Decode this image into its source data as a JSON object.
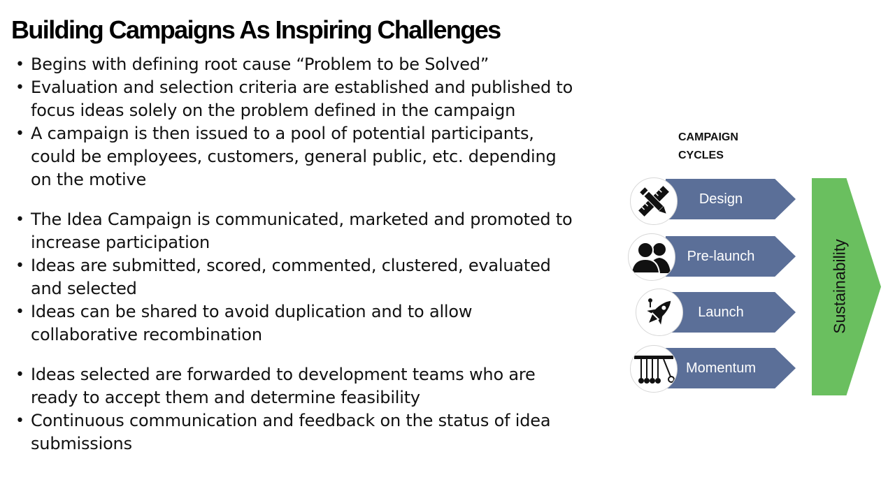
{
  "slide": {
    "title": "Building Campaigns As Inspiring Challenges",
    "bullets": [
      "Begins with defining root cause “Problem to be  Solved”",
      "Evaluation and selection criteria are established and published to focus  ideas solely on the problem defined in the  campaign",
      "A campaign is then issued to a pool of potential participants, could be  employees, customers, general public, etc. depending on the motive",
      "The Idea Campaign is communicated, marketed and promoted to increase  participation",
      "Ideas are submitted, scored, commented, clustered, evaluated and  selected",
      "Ideas can be shared to avoid duplication and to allow collaborative  recombination",
      "Ideas selected are forwarded to development teams who are ready to  accept them and determine feasibility",
      "Continuous communication and feedback on the status of idea  submissions"
    ]
  },
  "diagram": {
    "heading_line1": "CAMPAIGN",
    "heading_line2": "CYCLES",
    "stages": [
      {
        "label": "Design",
        "icon": "pencil-ruler-icon"
      },
      {
        "label": "Pre-launch",
        "icon": "people-icon"
      },
      {
        "label": "Launch",
        "icon": "rocket-icon"
      },
      {
        "label": "Momentum",
        "icon": "newtons-cradle-icon"
      }
    ],
    "sustainability_label": "Sustainability",
    "colors": {
      "stage_fill": "#5b6f98",
      "sustainability_fill": "#6abf5f"
    }
  }
}
